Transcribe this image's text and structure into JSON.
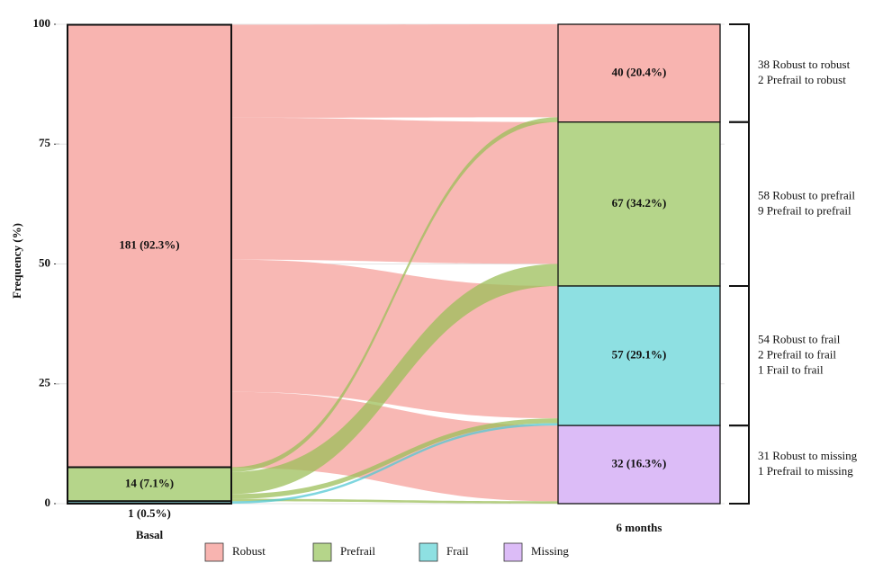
{
  "chart_data": {
    "type": "alluvial",
    "y_label": "Frequency (%)",
    "ylim": [
      0,
      100
    ],
    "yticks": [
      0,
      25,
      50,
      75,
      100
    ],
    "grid": true,
    "categories": [
      "Robust",
      "Prefrail",
      "Frail",
      "Missing"
    ],
    "colors": [
      "#f8b4b0",
      "#b5d58a",
      "#8ee0e2",
      "#dcbcf7"
    ],
    "flow_colors": [
      "#f8b4b0",
      "#9cbf5a",
      "#54c8d4",
      "#c9a2f0"
    ],
    "columns": [
      {
        "name": "Basal",
        "values": [
          92.3,
          7.1,
          0.5,
          null
        ],
        "value_labels": [
          "181 (92.3%)",
          "14 (7.1%)",
          "1 (0.5%)",
          null
        ]
      },
      {
        "name": "6 months",
        "values": [
          20.4,
          34.2,
          29.1,
          16.3
        ],
        "value_labels": [
          "40 (20.4%)",
          "67 (34.2%)",
          "57 (29.1%)",
          "32 (16.3%)"
        ]
      }
    ],
    "flows": [
      {
        "from": "Robust",
        "to": "Robust",
        "value": 19.4
      },
      {
        "from": "Robust",
        "to": "Prefrail",
        "value": 29.6
      },
      {
        "from": "Robust",
        "to": "Frail",
        "value": 27.6
      },
      {
        "from": "Robust",
        "to": "Missing",
        "value": 15.8
      },
      {
        "from": "Prefrail",
        "to": "Robust",
        "value": 1.0
      },
      {
        "from": "Prefrail",
        "to": "Prefrail",
        "value": 4.6
      },
      {
        "from": "Prefrail",
        "to": "Frail",
        "value": 1.0
      },
      {
        "from": "Prefrail",
        "to": "Missing",
        "value": 0.5
      },
      {
        "from": "Frail",
        "to": "Frail",
        "value": 0.5
      }
    ],
    "annotations": [
      [
        "38 Robust to robust",
        "2 Prefrail to robust"
      ],
      [
        "58 Robust to prefrail",
        "9 Prefrail to prefrail"
      ],
      [
        "54 Robust to frail",
        "2 Prefrail to frail",
        "1 Frail to frail"
      ],
      [
        "31 Robust to missing",
        "1 Prefrail to missing"
      ]
    ]
  }
}
